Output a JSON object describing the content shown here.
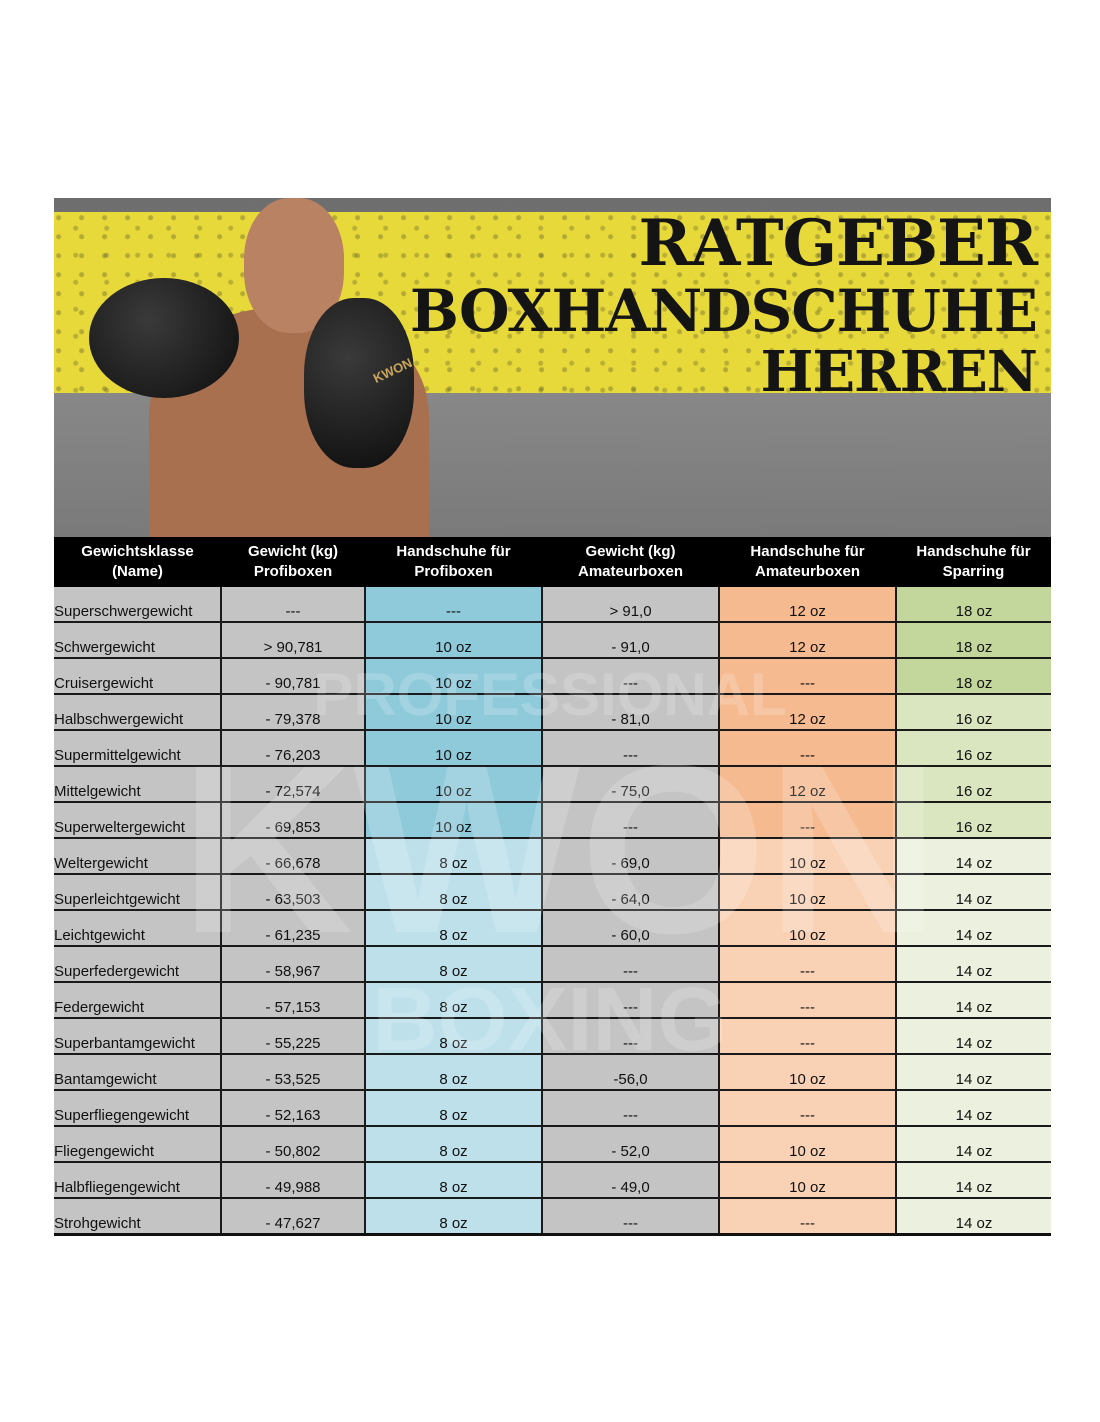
{
  "banner": {
    "title_line1": "RATGEBER",
    "title_line2": "BOXHANDSCHUHE",
    "title_line3": "HERREN",
    "glove_logo": "KWON",
    "colors": {
      "band": "#e8d93a",
      "concrete": "#7a7a7a"
    }
  },
  "watermark": {
    "line1": "PROFESSIONAL",
    "line2": "KWON",
    "line3": "BOXING"
  },
  "table": {
    "headers": [
      [
        "Gewichtsklasse",
        "(Name)"
      ],
      [
        "Gewicht (kg)",
        "Profiboxen"
      ],
      [
        "Handschuhe für",
        "Profiboxen"
      ],
      [
        "Gewicht (kg)",
        "Amateurboxen"
      ],
      [
        "Handschuhe für",
        "Amateurboxen"
      ],
      [
        "Handschuhe für",
        "Sparring"
      ]
    ],
    "rows": [
      [
        "Superschwergewicht",
        "---",
        "---",
        "> 91,0",
        "12 oz",
        "18 oz"
      ],
      [
        "Schwergewicht",
        "> 90,781",
        "10 oz",
        "- 91,0",
        "12 oz",
        "18 oz"
      ],
      [
        "Cruisergewicht",
        "- 90,781",
        "10 oz",
        "---",
        "---",
        "18 oz"
      ],
      [
        "Halbschwergewicht",
        "- 79,378",
        "10 oz",
        "- 81,0",
        "12 oz",
        "16 oz"
      ],
      [
        "Supermittelgewicht",
        "- 76,203",
        "10 oz",
        "---",
        "---",
        "16 oz"
      ],
      [
        "Mittelgewicht",
        "- 72,574",
        "10 oz",
        "- 75,0",
        "12 oz",
        "16 oz"
      ],
      [
        "Superweltergewicht",
        "- 69,853",
        "10 oz",
        "---",
        "---",
        "16 oz"
      ],
      [
        "Weltergewicht",
        "- 66,678",
        "8 oz",
        "- 69,0",
        "10 oz",
        "14 oz"
      ],
      [
        "Superleichtgewicht",
        "- 63,503",
        "8 oz",
        "- 64,0",
        "10 oz",
        "14 oz"
      ],
      [
        "Leichtgewicht",
        "- 61,235",
        "8 oz",
        "- 60,0",
        "10 oz",
        "14 oz"
      ],
      [
        "Superfedergewicht",
        "- 58,967",
        "8 oz",
        "---",
        "---",
        "14 oz"
      ],
      [
        "Federgewicht",
        "- 57,153",
        "8 oz",
        "---",
        "---",
        "14 oz"
      ],
      [
        "Superbantamgewicht",
        "- 55,225",
        "8 oz",
        "---",
        "---",
        "14 oz"
      ],
      [
        "Bantamgewicht",
        "- 53,525",
        "8 oz",
        "-56,0",
        "10 oz",
        "14 oz"
      ],
      [
        "Superfliegengewicht",
        "- 52,163",
        "8 oz",
        "---",
        "---",
        "14 oz"
      ],
      [
        "Fliegengewicht",
        "- 50,802",
        "8 oz",
        "- 52,0",
        "10 oz",
        "14 oz"
      ],
      [
        "Halbfliegengewicht",
        "- 49,988",
        "8 oz",
        "- 49,0",
        "10 oz",
        "14 oz"
      ],
      [
        "Strohgewicht",
        "- 47,627",
        "8 oz",
        "---",
        "---",
        "14 oz"
      ]
    ],
    "colors": {
      "gray": "#c4c4c4",
      "blue_10oz": "#8fcadb",
      "blue_8oz": "#bde0eb",
      "orange_12oz": "#f6ba90",
      "orange_10oz": "#f9d2b5",
      "green_18oz": "#c3d79c",
      "green_16oz": "#d9e6bf",
      "green_14oz": "#ebf1de"
    }
  }
}
